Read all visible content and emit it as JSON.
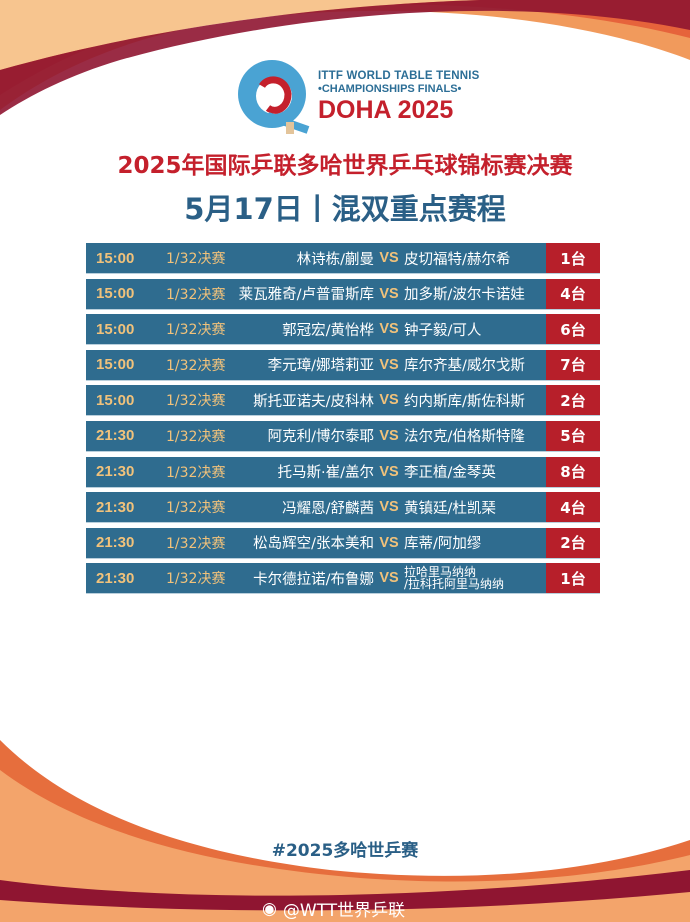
{
  "logo": {
    "line1": "ITTF WORLD TABLE TENNIS",
    "line2": "•CHAMPIONSHIPS FINALS•",
    "line3": "DOHA 2025"
  },
  "title": "2025年国际乒联多哈世界乒乓球锦标赛决赛",
  "subtitle": "5月17日丨混双重点赛程",
  "vs_label": "VS",
  "matches": [
    {
      "time": "15:00",
      "round": "1/32决赛",
      "p1": "林诗栋/蒯曼",
      "p2": "皮切福特/赫尔希",
      "table": "1台"
    },
    {
      "time": "15:00",
      "round": "1/32决赛",
      "p1": "莱瓦雅奇/卢普雷斯库",
      "p2": "加多斯/波尔卡诺娃",
      "table": "4台"
    },
    {
      "time": "15:00",
      "round": "1/32决赛",
      "p1": "郭冠宏/黄怡桦",
      "p2": "钟子毅/可人",
      "table": "6台"
    },
    {
      "time": "15:00",
      "round": "1/32决赛",
      "p1": "李元璋/娜塔莉亚",
      "p2": "库尔齐基/威尔戈斯",
      "table": "7台"
    },
    {
      "time": "15:00",
      "round": "1/32决赛",
      "p1": "斯托亚诺夫/皮科林",
      "p2": "约内斯库/斯佐科斯",
      "table": "2台"
    },
    {
      "time": "21:30",
      "round": "1/32决赛",
      "p1": "阿克利/博尔泰耶",
      "p2": "法尔克/伯格斯特隆",
      "table": "5台"
    },
    {
      "time": "21:30",
      "round": "1/32决赛",
      "p1": "托马斯·崔/盖尔",
      "p2": "李正植/金琴英",
      "table": "8台"
    },
    {
      "time": "21:30",
      "round": "1/32决赛",
      "p1": "冯耀恩/舒麟茜",
      "p2": "黄镇廷/杜凯琹",
      "table": "4台"
    },
    {
      "time": "21:30",
      "round": "1/32决赛",
      "p1": "松岛辉空/张本美和",
      "p2": "库蒂/阿加缪",
      "table": "2台"
    },
    {
      "time": "21:30",
      "round": "1/32决赛",
      "p1": "卡尔德拉诺/布鲁娜",
      "p2": "拉哈里马纳纳\n/拉科托阿里马纳纳",
      "table": "1台"
    }
  ],
  "hashtag": "#2025多哈世乒赛",
  "watermark": "@WTT世界乒联",
  "colors": {
    "row_blue": "#2f6c8f",
    "table_red": "#b71f2a",
    "gold": "#f1c27b",
    "title_red": "#c4202c",
    "title_blue": "#2a5f86"
  }
}
